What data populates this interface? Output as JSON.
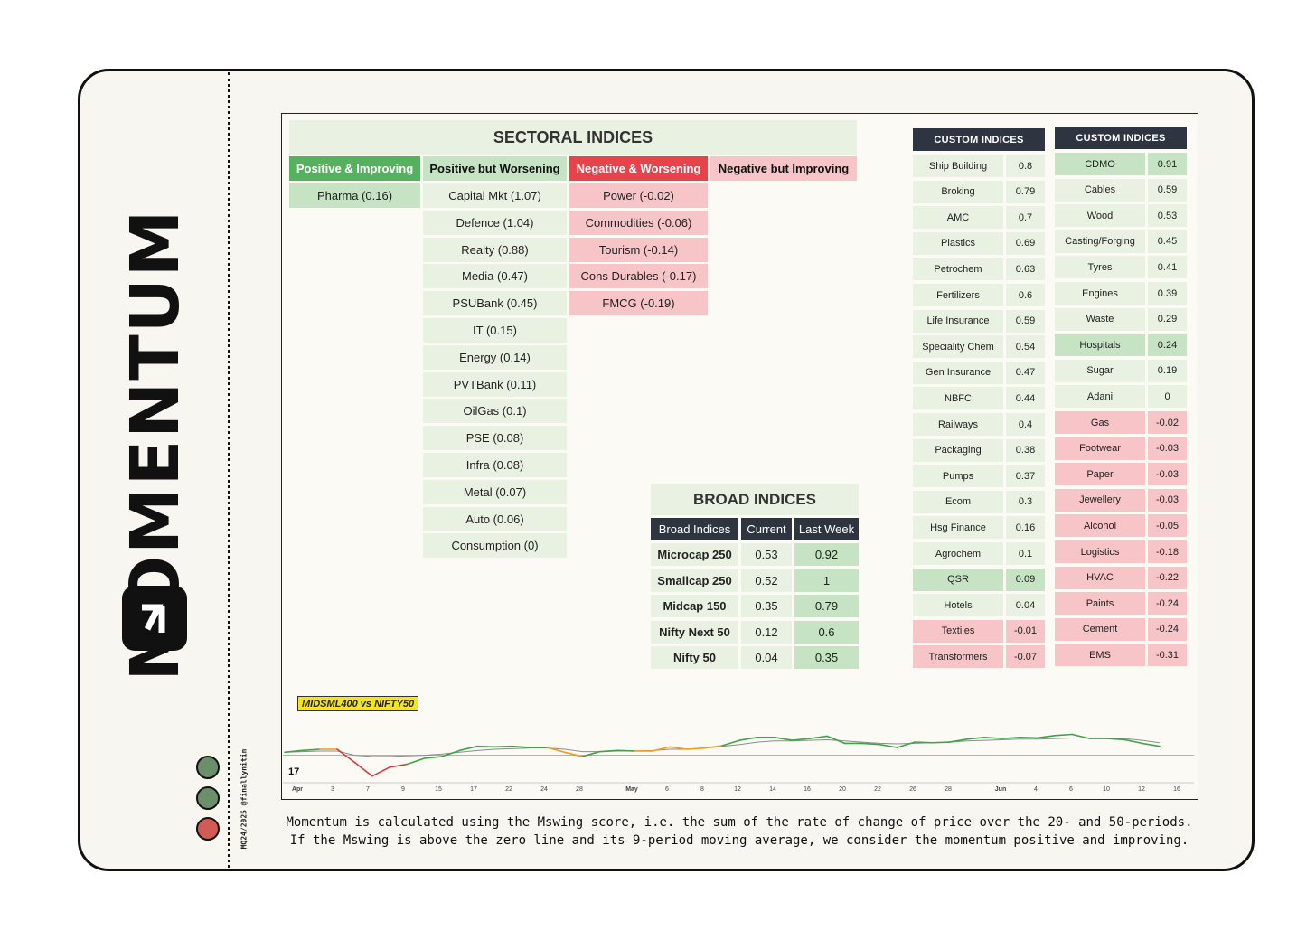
{
  "brand": {
    "title": "MOMENTUM",
    "credit": "MQ24/2025 @finallynitin"
  },
  "status_dots": [
    "#6b8f6b",
    "#6b8f6b",
    "#d25b55"
  ],
  "sectoral": {
    "title": "SECTORAL INDICES",
    "categories": [
      {
        "label": "Positive & Improving",
        "items": [
          "Pharma (0.16)"
        ]
      },
      {
        "label": "Positive but Worsening",
        "items": [
          "Capital Mkt (1.07)",
          "Defence (1.04)",
          "Realty (0.88)",
          "Media (0.47)",
          "PSUBank (0.45)",
          "IT (0.15)",
          "Energy (0.14)",
          "PVTBank (0.11)",
          "OilGas (0.1)",
          "PSE (0.08)",
          "Infra (0.08)",
          "Metal (0.07)",
          "Auto (0.06)",
          "Consumption (0)"
        ]
      },
      {
        "label": "Negative & Worsening",
        "items": [
          "Power (-0.02)",
          "Commodities (-0.06)",
          "Tourism (-0.14)",
          "Cons Durables (-0.17)",
          "FMCG (-0.19)"
        ]
      },
      {
        "label": "Negative but Improving",
        "items": []
      }
    ]
  },
  "broad": {
    "title": "BROAD INDICES",
    "headers": [
      "Broad Indices",
      "Current",
      "Last Week"
    ],
    "rows": [
      {
        "name": "Microcap 250",
        "current": "0.53",
        "last": "0.92"
      },
      {
        "name": "Smallcap 250",
        "current": "0.52",
        "last": "1"
      },
      {
        "name": "Midcap 150",
        "current": "0.35",
        "last": "0.79"
      },
      {
        "name": "Nifty Next 50",
        "current": "0.12",
        "last": "0.6"
      },
      {
        "name": "Nifty 50",
        "current": "0.04",
        "last": "0.35"
      }
    ]
  },
  "custom1": {
    "title": "CUSTOM INDICES",
    "rows": [
      {
        "name": "Ship Building",
        "value": "0.8",
        "tone": "lite"
      },
      {
        "name": "Broking",
        "value": "0.79",
        "tone": "lite"
      },
      {
        "name": "AMC",
        "value": "0.7",
        "tone": "lite"
      },
      {
        "name": "Plastics",
        "value": "0.69",
        "tone": "lite"
      },
      {
        "name": "Petrochem",
        "value": "0.63",
        "tone": "lite"
      },
      {
        "name": "Fertilizers",
        "value": "0.6",
        "tone": "lite"
      },
      {
        "name": "Life Insurance",
        "value": "0.59",
        "tone": "lite"
      },
      {
        "name": "Speciality Chem",
        "value": "0.54",
        "tone": "lite"
      },
      {
        "name": "Gen Insurance",
        "value": "0.47",
        "tone": "lite"
      },
      {
        "name": "NBFC",
        "value": "0.44",
        "tone": "lite"
      },
      {
        "name": "Railways",
        "value": "0.4",
        "tone": "lite"
      },
      {
        "name": "Packaging",
        "value": "0.38",
        "tone": "lite"
      },
      {
        "name": "Pumps",
        "value": "0.37",
        "tone": "lite"
      },
      {
        "name": "Ecom",
        "value": "0.3",
        "tone": "lite"
      },
      {
        "name": "Hsg Finance",
        "value": "0.16",
        "tone": "lite"
      },
      {
        "name": "Agrochem",
        "value": "0.1",
        "tone": "lite"
      },
      {
        "name": "QSR",
        "value": "0.09",
        "tone": "med"
      },
      {
        "name": "Hotels",
        "value": "0.04",
        "tone": "lite"
      },
      {
        "name": "Textiles",
        "value": "-0.01",
        "tone": "red"
      },
      {
        "name": "Transformers",
        "value": "-0.07",
        "tone": "red"
      }
    ]
  },
  "custom2": {
    "title": "CUSTOM INDICES",
    "rows": [
      {
        "name": "CDMO",
        "value": "0.91",
        "tone": "med"
      },
      {
        "name": "Cables",
        "value": "0.59",
        "tone": "lite"
      },
      {
        "name": "Wood",
        "value": "0.53",
        "tone": "lite"
      },
      {
        "name": "Casting/Forging",
        "value": "0.45",
        "tone": "lite"
      },
      {
        "name": "Tyres",
        "value": "0.41",
        "tone": "lite"
      },
      {
        "name": "Engines",
        "value": "0.39",
        "tone": "lite"
      },
      {
        "name": "Waste",
        "value": "0.29",
        "tone": "lite"
      },
      {
        "name": "Hospitals",
        "value": "0.24",
        "tone": "med"
      },
      {
        "name": "Sugar",
        "value": "0.19",
        "tone": "lite"
      },
      {
        "name": "Adani",
        "value": "0",
        "tone": "lite"
      },
      {
        "name": "Gas",
        "value": "-0.02",
        "tone": "red"
      },
      {
        "name": "Footwear",
        "value": "-0.03",
        "tone": "red"
      },
      {
        "name": "Paper",
        "value": "-0.03",
        "tone": "red"
      },
      {
        "name": "Jewellery",
        "value": "-0.03",
        "tone": "red"
      },
      {
        "name": "Alcohol",
        "value": "-0.05",
        "tone": "red"
      },
      {
        "name": "Logistics",
        "value": "-0.18",
        "tone": "red"
      },
      {
        "name": "HVAC",
        "value": "-0.22",
        "tone": "red"
      },
      {
        "name": "Paints",
        "value": "-0.24",
        "tone": "red"
      },
      {
        "name": "Cement",
        "value": "-0.24",
        "tone": "red"
      },
      {
        "name": "EMS",
        "value": "-0.31",
        "tone": "red"
      }
    ]
  },
  "chart_data": {
    "type": "line",
    "title": "MIDSML400 vs NIFTY50",
    "x_labels": [
      "Apr",
      "3",
      "7",
      "9",
      "15",
      "17",
      "22",
      "24",
      "28",
      "May",
      "6",
      "8",
      "12",
      "14",
      "16",
      "20",
      "22",
      "26",
      "28",
      "Jun",
      "4",
      "6",
      "10",
      "12",
      "16"
    ],
    "ylim": [
      -0.4,
      0.6
    ],
    "series": [
      {
        "values": [
          0.05,
          0.08,
          0.1,
          0.1,
          -0.12,
          -0.35,
          -0.2,
          -0.15,
          -0.05,
          -0.02,
          0.08,
          0.15,
          0.14,
          0.15,
          0.13,
          0.13,
          0.05,
          -0.02,
          0.06,
          0.08,
          0.07,
          0.07,
          0.14,
          0.1,
          0.12,
          0.16,
          0.25,
          0.3,
          0.3,
          0.25,
          0.28,
          0.32,
          0.2,
          0.2,
          0.18,
          0.13,
          0.22,
          0.21,
          0.22,
          0.27,
          0.3,
          0.28,
          0.3,
          0.29,
          0.33,
          0.35,
          0.28,
          0.28,
          0.26,
          0.2,
          0.15
        ],
        "colors": [
          "green",
          "green",
          "green",
          "orange",
          "red",
          "red",
          "red",
          "red",
          "green",
          "green",
          "green",
          "green",
          "green",
          "green",
          "green",
          "green",
          "orange",
          "orange",
          "green",
          "green",
          "green",
          "orange",
          "orange",
          "orange",
          "orange",
          "orange",
          "green",
          "green",
          "green",
          "green",
          "green",
          "green",
          "green",
          "green",
          "green",
          "green",
          "green",
          "green",
          "green",
          "green",
          "green",
          "green",
          "green",
          "green",
          "green",
          "green",
          "green",
          "green",
          "green",
          "green",
          "green"
        ]
      },
      {
        "values": [
          0.05,
          0.06,
          0.07,
          0.07,
          0.0,
          -0.02,
          -0.02,
          -0.01,
          0.0,
          0.02,
          0.05,
          0.08,
          0.1,
          0.11,
          0.12,
          0.12,
          0.1,
          0.06,
          0.06,
          0.07,
          0.07,
          0.08,
          0.1,
          0.1,
          0.12,
          0.15,
          0.18,
          0.22,
          0.24,
          0.24,
          0.25,
          0.26,
          0.24,
          0.22,
          0.2,
          0.19,
          0.2,
          0.21,
          0.22,
          0.24,
          0.25,
          0.26,
          0.27,
          0.27,
          0.28,
          0.29,
          0.29,
          0.28,
          0.28,
          0.25,
          0.21
        ]
      }
    ],
    "colors": {
      "green": "#3fa34a",
      "orange": "#f29a22",
      "red": "#d43a3a",
      "average": "#8c8c8c",
      "zero": "#9a9a9a"
    }
  },
  "footnote": {
    "line1": "Momentum is calculated using the Mswing score, i.e. the sum of the rate of change of price over the 20- and 50-periods.",
    "line2": "If the Mswing is above the zero line and its 9-period moving average, we consider the momentum positive and improving."
  },
  "tv_mark": "17"
}
